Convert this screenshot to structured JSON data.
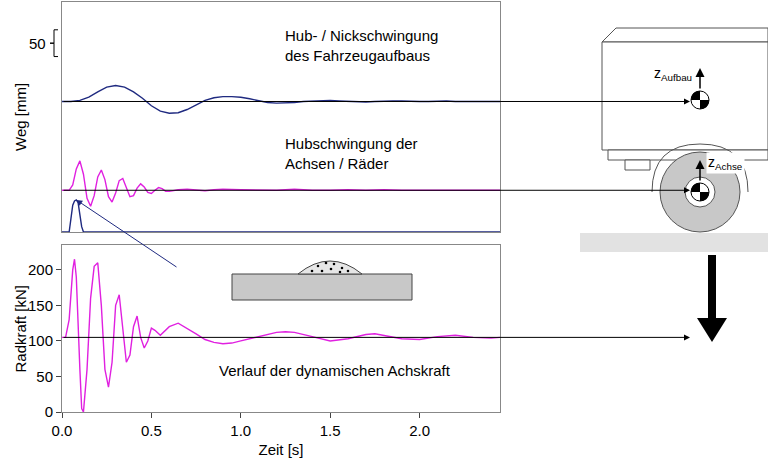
{
  "chart_data": [
    {
      "type": "line",
      "ylabel": "Weg [mm]",
      "xlim": [
        0,
        2.45
      ],
      "ylim": [
        0,
        430
      ],
      "tick_labels": false,
      "grid": false,
      "scale_bar": {
        "label": "50",
        "from": 328,
        "to": 378
      },
      "series": [
        {
          "label": [
            "Hub- / Nickschwingung",
            "des Fahrzeugaufbaus"
          ],
          "color": "#1f2a80",
          "x": [
            0,
            0.05,
            0.1,
            0.15,
            0.2,
            0.25,
            0.3,
            0.35,
            0.4,
            0.45,
            0.5,
            0.55,
            0.6,
            0.65,
            0.7,
            0.75,
            0.8,
            0.85,
            0.9,
            0.95,
            1.0,
            1.05,
            1.1,
            1.15,
            1.2,
            1.25,
            1.3,
            1.35,
            1.4,
            1.45,
            1.5,
            1.55,
            1.6,
            1.65,
            1.7,
            1.75,
            1.8,
            1.85,
            1.9,
            1.95,
            2.0,
            2.05,
            2.1,
            2.15,
            2.2,
            2.25,
            2.3,
            2.35,
            2.4,
            2.45
          ],
          "values": [
            244,
            244,
            246,
            252,
            262,
            271,
            274,
            271,
            262,
            250,
            236,
            226,
            222,
            223,
            229,
            238,
            246,
            251,
            253,
            253,
            252,
            249,
            245,
            242,
            241,
            241,
            242,
            244,
            245,
            246,
            246,
            245,
            244,
            243,
            243,
            244,
            245,
            245,
            245,
            244,
            244,
            244,
            245,
            245,
            244,
            244,
            244,
            244,
            244,
            244
          ]
        },
        {
          "label": [
            "Hubschwingung der",
            "Achsen / Räder"
          ],
          "color": "#e020e0",
          "x": [
            0,
            0.02,
            0.04,
            0.06,
            0.08,
            0.1,
            0.12,
            0.14,
            0.16,
            0.18,
            0.2,
            0.22,
            0.24,
            0.26,
            0.28,
            0.3,
            0.32,
            0.34,
            0.36,
            0.38,
            0.4,
            0.42,
            0.44,
            0.46,
            0.48,
            0.5,
            0.52,
            0.54,
            0.56,
            0.58,
            0.6,
            0.65,
            0.7,
            0.75,
            0.8,
            0.85,
            0.9,
            1.0,
            1.1,
            1.2,
            1.3,
            1.4,
            1.5,
            1.6,
            1.7,
            1.8,
            1.9,
            2.0,
            2.2,
            2.45
          ],
          "values": [
            78,
            78,
            78,
            88,
            118,
            133,
            108,
            63,
            48,
            68,
            103,
            116,
            98,
            66,
            56,
            73,
            96,
            100,
            83,
            66,
            68,
            82,
            90,
            84,
            74,
            72,
            78,
            83,
            81,
            76,
            76,
            79,
            80,
            78,
            77,
            79,
            80,
            79,
            78,
            78,
            80,
            78,
            78,
            79,
            78,
            79,
            78,
            78,
            78,
            78
          ]
        },
        {
          "color": "#1f2a80",
          "x": [
            0,
            0.04,
            0.05,
            0.06,
            0.07,
            0.08,
            0.09,
            0.1,
            0.11,
            0.12,
            2.45
          ],
          "values": [
            0,
            0,
            25,
            50,
            58,
            60,
            55,
            35,
            10,
            0,
            0
          ]
        }
      ]
    },
    {
      "type": "line",
      "ylabel": "Radkraft [kN]",
      "xlabel": "Zeit [s]",
      "xlim": [
        0,
        2.45
      ],
      "ylim": [
        0,
        235
      ],
      "xticks": [
        {
          "value": 0,
          "label": "0.0"
        },
        0.5,
        {
          "value": 1,
          "label": "1.0"
        },
        1.5,
        {
          "value": 2,
          "label": "2.0"
        }
      ],
      "yticks": [
        0,
        50,
        100,
        150,
        200
      ],
      "grid": false,
      "series": [
        {
          "label": [
            "Verlauf der dynamischen Achskraft"
          ],
          "color": "#e020e0",
          "x": [
            0,
            0.02,
            0.04,
            0.06,
            0.07,
            0.08,
            0.1,
            0.11,
            0.12,
            0.14,
            0.16,
            0.18,
            0.2,
            0.22,
            0.24,
            0.26,
            0.28,
            0.3,
            0.32,
            0.34,
            0.36,
            0.38,
            0.4,
            0.42,
            0.44,
            0.46,
            0.48,
            0.5,
            0.52,
            0.55,
            0.6,
            0.65,
            0.7,
            0.75,
            0.8,
            0.85,
            0.9,
            0.95,
            1.0,
            1.1,
            1.2,
            1.25,
            1.3,
            1.4,
            1.5,
            1.6,
            1.7,
            1.75,
            1.8,
            1.9,
            2.0,
            2.1,
            2.2,
            2.3,
            2.4,
            2.45
          ],
          "values": [
            105,
            105,
            130,
            200,
            215,
            190,
            60,
            5,
            0,
            60,
            160,
            205,
            210,
            150,
            60,
            35,
            70,
            150,
            165,
            120,
            70,
            80,
            120,
            135,
            105,
            90,
            100,
            118,
            115,
            108,
            120,
            125,
            118,
            110,
            102,
            98,
            96,
            97,
            100,
            106,
            112,
            113,
            112,
            106,
            100,
            103,
            109,
            110,
            108,
            103,
            102,
            106,
            108,
            105,
            104,
            105
          ]
        }
      ]
    }
  ],
  "diagram": {
    "body_label": {
      "symbol": "z",
      "sub": "Aufbau"
    },
    "axle_label": {
      "symbol": "z",
      "sub": "Achse"
    }
  }
}
